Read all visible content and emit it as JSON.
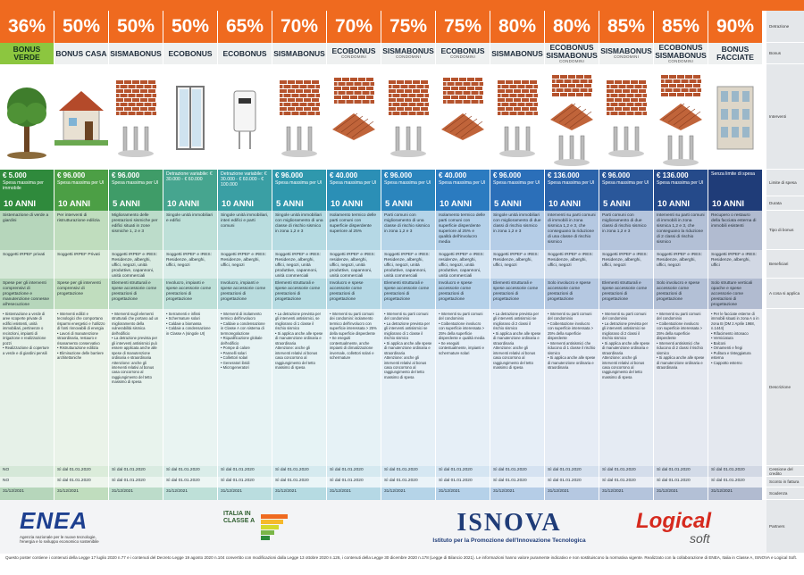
{
  "row_labels": [
    "Detrazione",
    "Bonus",
    "Interventi",
    "Limite di spesa",
    "Durata",
    "Tipo di bonus",
    "Beneficiari",
    "A cosa si applica",
    "Descrizione",
    "Cessione del credito",
    "Sconto in fattura",
    "Scadenza",
    "Partners"
  ],
  "columns": [
    {
      "percent": "36%",
      "name": "BONUS VERDE",
      "color": "#2f8a3c",
      "limit": "€ 5.000",
      "limit_note": "Spesa massima per immobile",
      "duration": "10 ANNI",
      "type": "Sistemazione di verde a giardini",
      "beneficiaries": "Soggetti IRPEF privati",
      "applies_to": "Spese per gli interventi comprensivi di progettazione e manutenzione connesse all'esecuzione",
      "description": "• Sistemazione a verde di aree scoperte private di edifici esistenti, unità immobiliari, pertinenze o recinzioni, impianti di irrigazione e realizzazione pozzi\n• Realizzazione di coperture a verde e di giardini pensili",
      "credit_transfer": "NO",
      "invoice_discount": "NO",
      "deadline": "31/12/2021"
    },
    {
      "percent": "50%",
      "name": "BONUS CASA",
      "color": "#4c9f45",
      "limit": "€ 96.000",
      "limit_note": "Spesa massima per UI",
      "duration": "10 ANNI",
      "type": "Per interventi di ristrutturazione edilizia",
      "beneficiaries": "Soggetti IRPEF Privati",
      "applies_to": "Spese per gli interventi comprensivi di progettazione",
      "description": "• Interventi edilizi e tecnologici che comportano risparmi energetici e l'utilizzo di fonti rinnovabili di energia\n• Lavori di manutenzione straordinaria, restauro e risanamento conservativo\n• Ristrutturazione edilizia\n• Eliminazione delle barriere architettoniche",
      "credit_transfer": "Sì dal 01.01.2020",
      "invoice_discount": "Sì dal 01.01.2020",
      "deadline": "31/12/2021"
    },
    {
      "percent": "50%",
      "name": "SISMABONUS",
      "color": "#3f9c68",
      "limit": "€ 96.000",
      "limit_note": "Spesa massima per UI",
      "duration": "5 ANNI",
      "type": "Miglioramento delle prestazioni sismiche per edifici situati in zone sismiche 1, 2 e 3",
      "beneficiaries": "Soggetti IRPEF e IRES: Residenze, alberghi, uffici, negozi, unità produttive, capannoni, unità commerciali",
      "applies_to": "Elementi strutturali e spese accessorie come prestazioni di progettazione",
      "description": "• Interventi sugli elementi strutturali che portano ad un miglioramento della vulnerabilità sismica dell'edificio\n• La detrazione prevista per gli interventi antisismici può essere applicata anche alle spese di manutenzione ordinaria e straordinaria\nAttenzione: anche gli interventi relativi al bonus casa concorrono al raggiungimento del tetto massimo di spesa",
      "credit_transfer": "Sì dal 01.01.2020",
      "invoice_discount": "Sì dal 01.01.2020",
      "deadline": "31/12/2021"
    },
    {
      "percent": "50%",
      "name": "ECOBONUS",
      "color": "#46a58f",
      "limit": "Detrazione variabile: € 30.000 - € 60.000",
      "limit_note": "",
      "duration": "10 ANNI",
      "type": "Singole unità immobiliari e edifici",
      "beneficiaries": "Soggetti IRPEF e IRES: Residenze, alberghi, uffici, negozi",
      "applies_to": "Involucro, impianti e spese accessorie come prestazioni di progettazione",
      "description": "• Serramenti e infissi\n• Schermature solari\n• Caldaie a biomassa\n• Caldaie a condensazione in Classe A (singole UI)",
      "credit_transfer": "Sì dal 01.01.2020",
      "invoice_discount": "Sì dal 01.01.2020",
      "deadline": "31/12/2021"
    },
    {
      "percent": "65%",
      "name": "ECOBONUS",
      "color": "#3a9fa4",
      "limit": "Detrazione variabile: € 30.000 - € 60.000 - € 100.000",
      "limit_note": "",
      "duration": "10 ANNI",
      "type": "Singole unità immobiliari, interi edifici e parti comuni",
      "beneficiaries": "Soggetti IRPEF e IRES: Residenze, alberghi, uffici, negozi",
      "applies_to": "Involucro, impianti e spese accessorie come prestazioni di progettazione",
      "description": "• Interventi di isolamento termico dell'involucro\n• Caldaie a condensazione in Classe A con sistema di termoregolazione\n• Riqualificazione globale dell'edificio\n• Pompe di calore\n• Pannelli solari\n• Collettori solari\n• Generatori ibridi\n• Microgeneratori",
      "credit_transfer": "Sì dal 01.01.2020",
      "invoice_discount": "Sì dal 01.01.2020",
      "deadline": "31/12/2021"
    },
    {
      "percent": "70%",
      "name": "SISMABONUS",
      "color": "#2f98ad",
      "limit": "€ 96.000",
      "limit_note": "Spesa massima per UI",
      "duration": "5 ANNI",
      "type": "Singole unità immobiliari con miglioramento di una classe di rischio sismico in zona 1,2 e 3",
      "beneficiaries": "Soggetti IRPEF e IRES: Residenze, alberghi, uffici, negozi, unità produttive, capannoni, unità commerciali",
      "applies_to": "Elementi strutturali e spese accessorie come prestazioni di progettazione",
      "description": "• La detrazione prevista per gli interventi antisismici, se migliorano di 1 classe il rischio sismico\n• Si applica anche alle spese di manutenzione ordinaria e straordinaria\nAttenzione: anche gli interventi relativi al bonus casa concorrono al raggiungimento del tetto massimo di spesa",
      "credit_transfer": "Sì dal 01.01.2020",
      "invoice_discount": "Sì dal 01.01.2020",
      "deadline": "31/12/2021"
    },
    {
      "percent": "70%",
      "name": "ECOBONUS",
      "subtitle": "CONDOMINI",
      "color": "#2b8fb6",
      "limit": "€ 40.000",
      "limit_note": "Spesa massima per UI",
      "duration": "10 ANNI",
      "type": "Isolamento termico delle parti comuni con superficie disperdente superiore al 25%",
      "beneficiaries": "Soggetti IRPEF e IRES: residenze, alberghi, uffici, negozi, unità produttive, capannoni, unità commerciali",
      "applies_to": "Involucro e spese accessorie come prestazioni di progettazione",
      "description": "• Interventi su parti comuni dei condomini: isolamento termico dell'involucro con superficie interessata > 25% della superficie disperdente\n• Se eseguiti contestualmente, anche impianti di climatizzazione invernale, collettori solari e schermature",
      "credit_transfer": "Sì dal 01.01.2020",
      "invoice_discount": "Sì dal 01.01.2020",
      "deadline": "31/12/2021"
    },
    {
      "percent": "75%",
      "name": "SISMABONUS",
      "subtitle": "CONDOMINI",
      "color": "#2b85bd",
      "limit": "€ 96.000",
      "limit_note": "Spesa massima per UI",
      "duration": "5 ANNI",
      "type": "Parti comuni con miglioramento di una classe di rischio sismico in zona 1,2 e 3",
      "beneficiaries": "Soggetti IRPEF e IRES: Residenze, alberghi, uffici, negozi, unità produttive, capannoni, unità commerciali",
      "applies_to": "Elementi strutturali e spese accessorie come prestazioni di progettazione",
      "description": "• Interventi su parti comuni del condominio\n• La detrazione prevista per gli interventi antisismici se migliorano di 1 classe il rischio sismico\n• Si applica anche alle spese di manutenzione ordinaria e straordinaria\nAttenzione: anche gli interventi relativi al bonus casa concorrono al raggiungimento del tetto massimo di spesa",
      "credit_transfer": "Sì dal 01.01.2020",
      "invoice_discount": "Sì dal 01.01.2020",
      "deadline": "31/12/2021"
    },
    {
      "percent": "75%",
      "name": "ECOBONUS",
      "subtitle": "CONDOMINI",
      "color": "#2b7bc0",
      "limit": "€ 40.000",
      "limit_note": "Spesa massima per UI",
      "duration": "10 ANNI",
      "type": "Isolamento termico delle parti comuni con superficie disperdente superiore al 25% e qualità dell'involucro media",
      "beneficiaries": "Soggetti IRPEF e IRES: residenze, alberghi, uffici, negozi, unità produttive, capannoni, unità commerciali",
      "applies_to": "Involucro e spese accessorie come prestazioni di progettazione",
      "description": "• Interventi su parti comuni del condominio\n• Coibentazione involucro con superficie interessata > 25% della superficie disperdente e qualità media\n• Se eseguiti contestualmente, impianti e schermature solari",
      "credit_transfer": "Sì dal 01.01.2020",
      "invoice_discount": "Sì dal 01.01.2020",
      "deadline": "31/12/2021"
    },
    {
      "percent": "80%",
      "name": "SISMABONUS",
      "color": "#2b6fb9",
      "limit": "€ 96.000",
      "limit_note": "Spesa massima per UI",
      "duration": "5 ANNI",
      "type": "Singole unità immobiliari con miglioramento di due classi di rischio sismico in zona 1,2 e 3",
      "beneficiaries": "Soggetti IRPEF e IRES: Residenze, alberghi, uffici, negozi",
      "applies_to": "Elementi strutturali e spese accessorie come prestazioni di progettazione",
      "description": "• La detrazione prevista per gli interventi antisismici se migliorano di 2 classi il rischio sismico\n• Si applica anche alle spese di manutenzione ordinaria e straordinaria\nAttenzione: anche gli interventi relativi al bonus casa concorrono al raggiungimento del tetto massimo di spesa",
      "credit_transfer": "Sì dal 01.01.2020",
      "invoice_discount": "Sì dal 01.01.2020",
      "deadline": "31/12/2021"
    },
    {
      "percent": "80%",
      "name": "ECOBONUS SISMABONUS",
      "subtitle": "CONDOMINI",
      "color": "#2b63aa",
      "limit": "€ 136.000",
      "limit_note": "Spesa massima per UI",
      "duration": "10 ANNI",
      "type": "Interventi su parti comuni di immobili in zona sismica 1,2 e 3, che conseguano la riduzione di una classe di rischio sismico",
      "beneficiaries": "Soggetti IRPEF e IRES: Residenze, alberghi, uffici, negozi",
      "applies_to": "Solo involucro e spese accessorie come prestazioni di progettazione",
      "description": "• Interventi su parti comuni del condominio\n• Coibentazione involucro con superficie interessata > 25% della superficie disperdente\n• Interventi antisismici che riducono di 1 classe il rischio sismico\n• Si applica anche alle spese di manutenzione ordinaria e straordinaria",
      "credit_transfer": "Sì dal 01.01.2020",
      "invoice_discount": "Sì dal 01.01.2020",
      "deadline": "31/12/2021"
    },
    {
      "percent": "85%",
      "name": "SISMABONUS",
      "subtitle": "CONDOMINI",
      "color": "#2a579a",
      "limit": "€ 96.000",
      "limit_note": "Spesa massima per UI",
      "duration": "5 ANNI",
      "type": "Parti comuni con miglioramento di due classi di rischio sismico in zona 1,2 e 3",
      "beneficiaries": "Soggetti IRPEF e IRES: Residenze, alberghi, uffici, negozi",
      "applies_to": "Elementi strutturali e spese accessorie come prestazioni di progettazione",
      "description": "• Interventi su parti comuni del condominio\n• La detrazione prevista per gli interventi antisismici se migliorano di 2 classi il rischio sismico\n• Si applica anche alle spese di manutenzione ordinaria e straordinaria\nAttenzione: anche gli interventi relativi al bonus casa concorrono al raggiungimento del tetto massimo di spesa",
      "credit_transfer": "Sì dal 01.01.2020",
      "invoice_discount": "Sì dal 01.01.2020",
      "deadline": "31/12/2021"
    },
    {
      "percent": "85%",
      "name": "ECOBONUS SISMABONUS",
      "subtitle": "CONDOMINI",
      "color": "#254a8a",
      "limit": "€ 136.000",
      "limit_note": "Spesa massima per UI",
      "duration": "10 ANNI",
      "type": "Interventi su parti comuni di immobili in zona sismica 1,2 e 3, che conseguano la riduzione di 2 classi di rischio sismico",
      "beneficiaries": "Soggetti IRPEF e IRES: Residenze, alberghi, uffici, negozi",
      "applies_to": "Solo involucro e spese accessorie come prestazioni di progettazione",
      "description": "• Interventi su parti comuni del condominio\n• Coibentazione involucro con superficie interessata > 25% della superficie disperdente\n• Interventi antisismici che riducono di 2 classi il rischio sismico\n• Si applica anche alle spese di manutenzione ordinaria e straordinaria",
      "credit_transfer": "Sì dal 01.01.2020",
      "invoice_discount": "Sì dal 01.01.2020",
      "deadline": "31/12/2021"
    },
    {
      "percent": "90%",
      "name": "BONUS FACCIATE",
      "color": "#1f3c78",
      "limit": "Senza limite di spesa",
      "limit_note": "",
      "duration": "10 ANNI",
      "type": "Recupero o restauro della facciata esterna di immobili esistenti",
      "beneficiaries": "Soggetti IRPEF e IRES: Residenze, alberghi, uffici",
      "applies_to": "Solo strutture verticali opache e spese accessorie come prestazioni di progettazione",
      "description": "• Per le facciate esterne di immobili situati in zona A o in zona B (DM 2 Aprile 1968, n.1444)\n• Rifacimento intonaco\n• Verniciatura\n• Balconi\n• Ornamenti e fregi\n• Pulitura e tinteggiatura esterna\n• Cappotto esterno",
      "credit_transfer": "Sì dal 01.01.2020",
      "invoice_discount": "Sì dal 01.01.2020",
      "deadline": "31/12/2021"
    }
  ],
  "partners": {
    "enea": "ENEA",
    "enea_note": "Agenzia nazionale per le nuove tecnologie, l'energia e lo sviluppo economico sostenibile",
    "italia": "ITALIA IN CLASSE A",
    "isnova": "ISNOVA",
    "isnova_note": "Istituto per la Promozione dell'Innovazione Tecnologica",
    "logical": "Logical",
    "logical_note": "soft"
  },
  "footer": "Questo poster contiene i contenuti della Legge 17 luglio 2020 n.77 e i contenuti del Decreto Legge 19 agosto 2020 n.104 convertito con modificazioni dalla Legge 13 ottobre 2020 n.126, i contenuti della Legge 30 dicembre 2020 n.178 (Legge di Bilancio 2021). Le informazioni hanno valore puramente indicativo e non sostituiscono la normativa vigente. Realizzato con la collaborazione di ENEA, Italia in Classe A, ISNOVA e Logical Soft."
}
